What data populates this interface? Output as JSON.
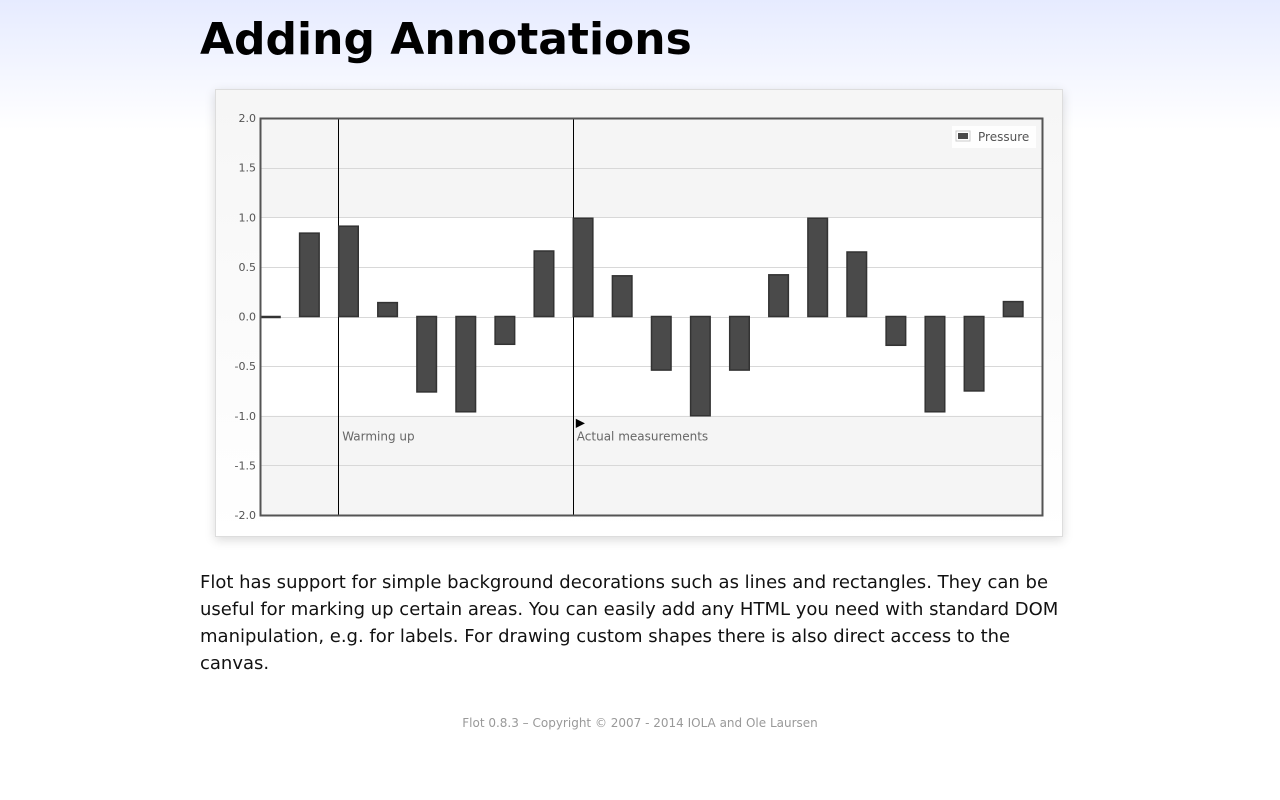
{
  "page": {
    "title": "Adding Annotations",
    "description": "Flot has support for simple background decorations such as lines and rectangles. They can be useful for marking up certain areas. You can easily add any HTML you need with standard DOM manipulation, e.g. for labels. For drawing custom shapes there is also direct access to the canvas.",
    "footer": "Flot 0.8.3 – Copyright © 2007 - 2014 IOLA and Ole Laursen"
  },
  "colors": {
    "bar_fill": "#4a4a4a",
    "bar_stroke": "#333333",
    "band_fill": "#f5f5f5",
    "grid_line": "#d8d8d8",
    "axis_border": "#545454",
    "marking_line": "#000000"
  },
  "chart_data": {
    "type": "bar",
    "series": [
      {
        "name": "Pressure",
        "x": [
          0,
          1,
          2,
          3,
          4,
          5,
          6,
          7,
          8,
          9,
          10,
          11,
          12,
          13,
          14,
          15,
          16,
          17,
          18,
          19
        ],
        "values": [
          0.0,
          0.84,
          0.91,
          0.14,
          -0.76,
          -0.96,
          -0.28,
          0.66,
          0.99,
          0.41,
          -0.54,
          -1.0,
          -0.54,
          0.42,
          0.99,
          0.65,
          -0.29,
          -0.96,
          -0.75,
          0.15
        ]
      }
    ],
    "ylim": [
      -2,
      2
    ],
    "yticks": [
      "2.0",
      "1.5",
      "1.0",
      "0.5",
      "0.0",
      "-0.5",
      "-1.0",
      "-1.5",
      "-2.0"
    ],
    "xlim": [
      0,
      20
    ],
    "bar_width": 0.5,
    "grid": true,
    "legend": {
      "position": "top-right",
      "entries": [
        "Pressure"
      ]
    },
    "markings": {
      "bands": [
        {
          "y_from": 1,
          "y_to": 2
        },
        {
          "y_from": -2,
          "y_to": -1
        }
      ],
      "vertical_lines": [
        2,
        8
      ]
    },
    "annotations": [
      {
        "x": 2,
        "y": -1.2,
        "text": "Warming up"
      },
      {
        "x": 8,
        "y": -1.2,
        "text": "Actual measurements"
      }
    ],
    "arrow": {
      "x": 8,
      "y": -1.2,
      "symbol": "▶"
    }
  }
}
